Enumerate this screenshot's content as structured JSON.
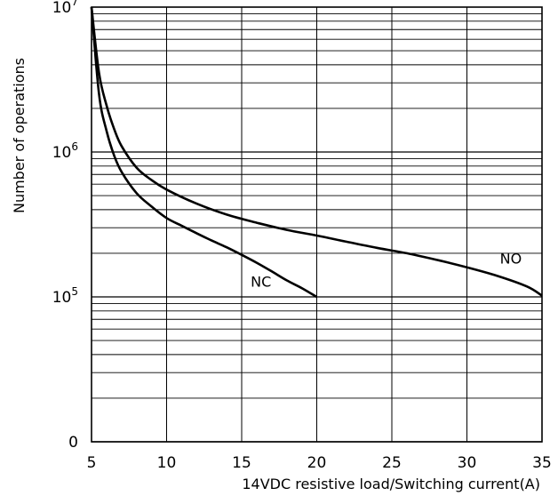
{
  "chart_data": {
    "type": "line",
    "title": "",
    "xlabel": "14VDC resistive load/Switching current(A)",
    "ylabel": "Number of operations",
    "x_scale": "linear",
    "y_scale": "log",
    "xlim": [
      5,
      35
    ],
    "ylim_decades": [
      10000,
      10000000
    ],
    "grid": true,
    "x_ticks": [
      5,
      10,
      15,
      20,
      25,
      30,
      35
    ],
    "x_tick_labels": [
      "5",
      "10",
      "15",
      "20",
      "25",
      "30",
      "35"
    ],
    "y_tick_labels": [
      {
        "value": 10000,
        "base": "0",
        "exp": ""
      },
      {
        "value": 100000,
        "base": "10",
        "exp": "5"
      },
      {
        "value": 1000000,
        "base": "10",
        "exp": "6"
      },
      {
        "value": 10000000,
        "base": "10",
        "exp": "7"
      }
    ],
    "series": [
      {
        "name": "NO",
        "x": [
          5,
          5.5,
          6,
          6.5,
          7,
          8,
          9,
          10,
          12,
          14,
          16,
          18,
          20,
          22,
          24,
          26,
          28,
          30,
          32,
          34,
          35
        ],
        "y": [
          10000000,
          3500000,
          2100000,
          1450000,
          1100000,
          780000,
          640000,
          550000,
          440000,
          370000,
          325000,
          290000,
          265000,
          240000,
          218000,
          200000,
          180000,
          160000,
          140000,
          118000,
          102000
        ]
      },
      {
        "name": "NC",
        "x": [
          5,
          5.5,
          6,
          6.5,
          7,
          8,
          9,
          10,
          11,
          12,
          13,
          14,
          15,
          16,
          17,
          18,
          19,
          20
        ],
        "y": [
          10000000,
          2500000,
          1400000,
          950000,
          730000,
          520000,
          420000,
          350000,
          310000,
          275000,
          245000,
          220000,
          195000,
          172000,
          150000,
          130000,
          115000,
          100000
        ]
      }
    ],
    "annotations": [
      {
        "text": "NC",
        "x": 15.6,
        "y": 118000
      },
      {
        "text": "NO",
        "x": 32.2,
        "y": 170000
      }
    ]
  }
}
